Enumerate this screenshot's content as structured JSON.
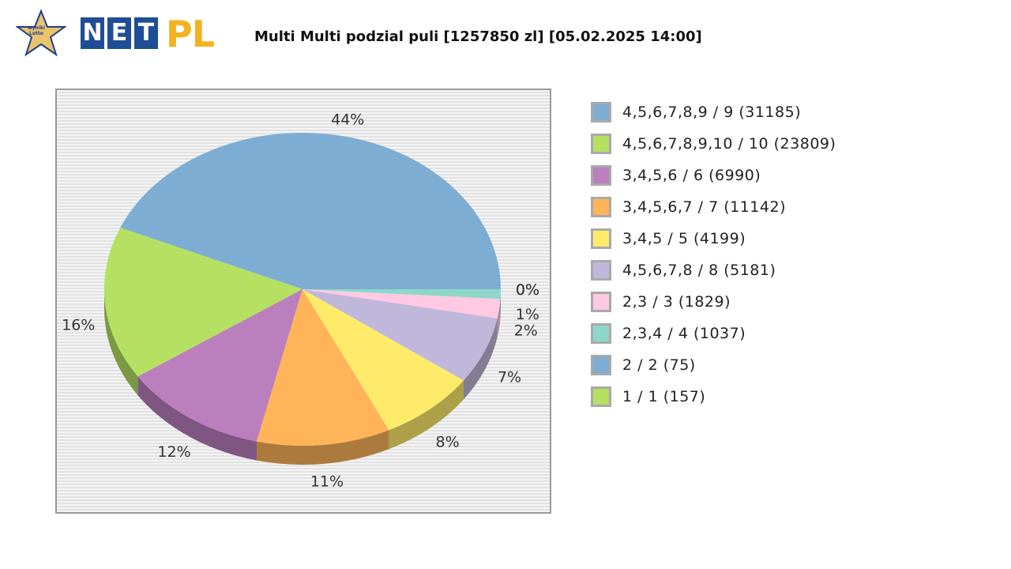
{
  "logo": {
    "star_text_line1": "wyniki",
    "star_text_line2": "Lotto",
    "tiles": [
      "N",
      "E",
      "T"
    ],
    "pl": "PL",
    "colors": {
      "tile": "#1f4e96",
      "pl": "#f3b21f",
      "star": "#e9c46a"
    }
  },
  "title": "Multi Multi podzial puli [1257850 zl] [05.02.2025 14:00]",
  "chart_data": {
    "type": "pie",
    "title": "Multi Multi podzial puli [1257850 zl] [05.02.2025 14:00]",
    "legend_position": "right",
    "three_d": true,
    "series": [
      {
        "name": "4,5,6,7,8,9 / 9 (31185)",
        "value": 31185,
        "label": "44%",
        "color": "#7eadd3"
      },
      {
        "name": "4,5,6,7,8,9,10 / 10 (23809)",
        "value": 23809,
        "label": "16%",
        "color": "#b5e061"
      },
      {
        "name": "3,4,5,6 / 6 (6990)",
        "value": 6990,
        "label": "12%",
        "color": "#bb7fbd"
      },
      {
        "name": "3,4,5,6,7 / 7 (11142)",
        "value": 11142,
        "label": "11%",
        "color": "#ffb45a"
      },
      {
        "name": "3,4,5 / 5 (4199)",
        "value": 4199,
        "label": "8%",
        "color": "#ffeb6a"
      },
      {
        "name": "4,5,6,7,8 / 8 (5181)",
        "value": 5181,
        "label": "7%",
        "color": "#c0b8da"
      },
      {
        "name": "2,3 / 3 (1829)",
        "value": 1829,
        "label": "2%",
        "color": "#ffc9e4"
      },
      {
        "name": "2,3,4 / 4 (1037)",
        "value": 1037,
        "label": "1%",
        "color": "#8ed7c8"
      },
      {
        "name": "2 / 2 (75)",
        "value": 75,
        "label": "0%",
        "color": "#7eadd3"
      },
      {
        "name": "1 / 1 (157)",
        "value": 157,
        "label": "0%",
        "color": "#b5e061"
      }
    ],
    "slice_percentages": [
      44,
      16,
      12,
      11,
      8,
      7,
      2,
      1,
      0,
      0
    ]
  }
}
